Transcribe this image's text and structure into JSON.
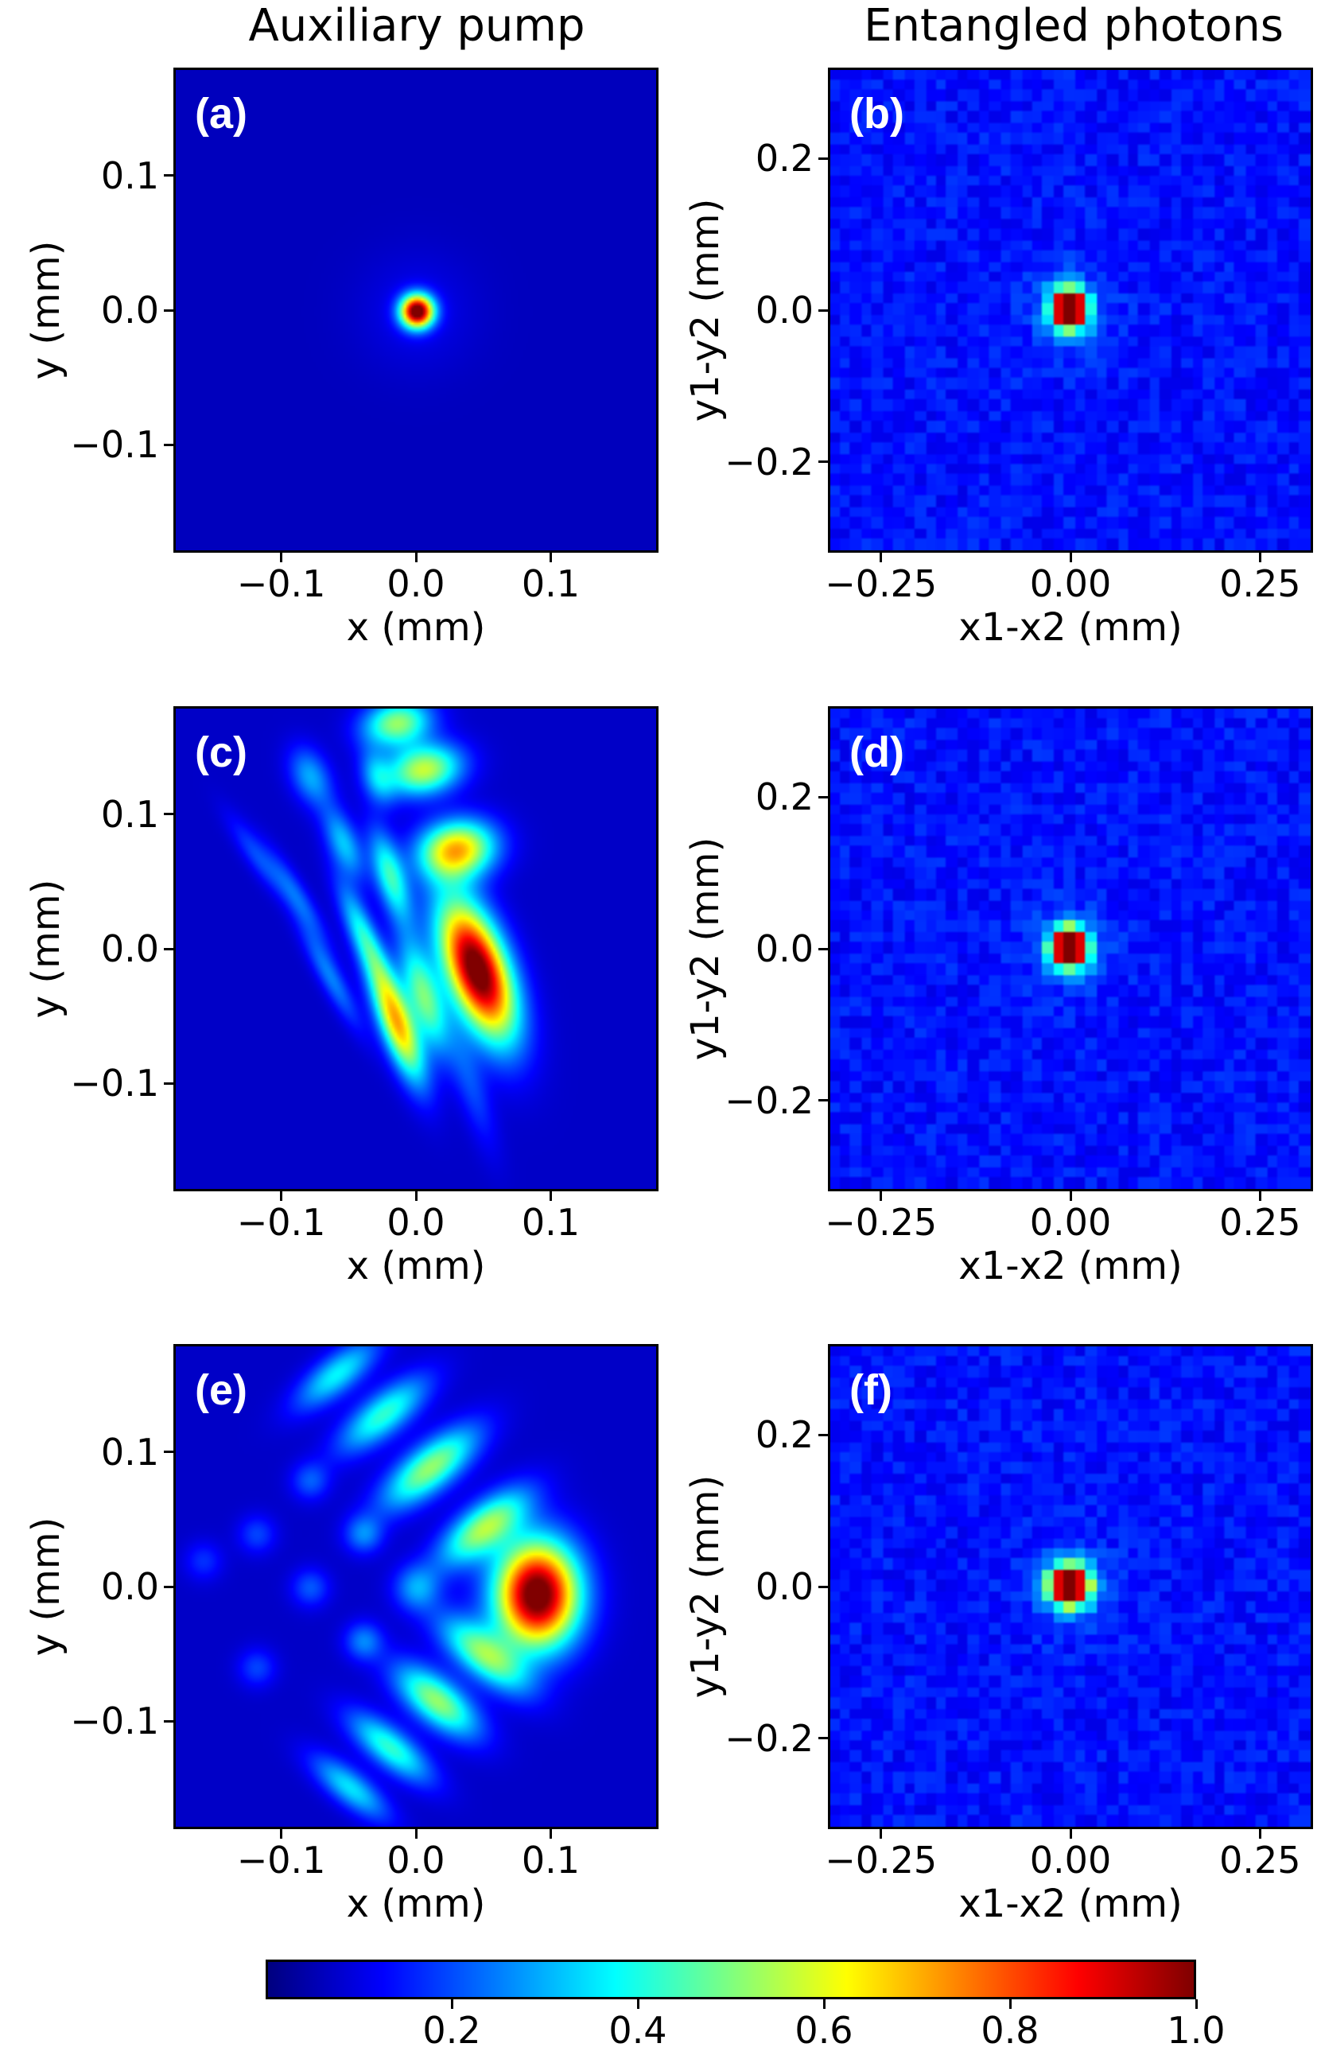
{
  "titles": {
    "left": "Auxiliary pump",
    "right": "Entangled photons"
  },
  "axis_labels": {
    "x_left": "x (mm)",
    "y_left": "y (mm)",
    "x_right": "x1-x2 (mm)",
    "y_right": "y1-y2 (mm)"
  },
  "colorbar": {
    "ticks": [
      "0.2",
      "0.4",
      "0.6",
      "0.8",
      "1.0"
    ],
    "colormap": "jet",
    "range": [
      0.0,
      1.0
    ]
  },
  "chart_data": [
    {
      "type": "heatmap",
      "panel": "(a)",
      "title": "Auxiliary pump",
      "xlabel": "x (mm)",
      "ylabel": "y (mm)",
      "xlim": [
        -0.18,
        0.18
      ],
      "ylim": [
        -0.18,
        0.18
      ],
      "xticks": [
        "−0.1",
        "0.0",
        "0.1"
      ],
      "yticks": [
        "0.1",
        "0.0",
        "−0.1"
      ],
      "xtick_values": [
        -0.1,
        0.0,
        0.1
      ],
      "ytick_values": [
        0.1,
        0.0,
        -0.1
      ],
      "description_values": {
        "peak_x_mm": 0.0,
        "peak_y_mm": 0.0,
        "peak_intensity": 1.0
      }
    },
    {
      "type": "heatmap",
      "panel": "(b)",
      "title": "Entangled photons",
      "xlabel": "x1-x2 (mm)",
      "ylabel": "y1-y2 (mm)",
      "xlim": [
        -0.32,
        0.32
      ],
      "ylim": [
        -0.32,
        0.32
      ],
      "xticks": [
        "−0.25",
        "0.00",
        "0.25"
      ],
      "yticks": [
        "0.2",
        "0.0",
        "−0.2"
      ],
      "xtick_values": [
        -0.25,
        0.0,
        0.25
      ],
      "ytick_values": [
        0.2,
        0.0,
        -0.2
      ],
      "description_values": {
        "peak_x_mm": 0.0,
        "peak_y_mm": 0.0,
        "peak_intensity": 1.0
      }
    },
    {
      "type": "heatmap",
      "panel": "(c)",
      "xlabel": "x (mm)",
      "ylabel": "y (mm)",
      "xlim": [
        -0.18,
        0.18
      ],
      "ylim": [
        -0.18,
        0.18
      ],
      "xticks": [
        "−0.1",
        "0.0",
        "0.1"
      ],
      "yticks": [
        "0.1",
        "0.0",
        "−0.1"
      ],
      "xtick_values": [
        -0.1,
        0.0,
        0.1
      ],
      "ytick_values": [
        0.1,
        0.0,
        -0.1
      ],
      "description_values": {
        "peak_x_mm": 0.045,
        "peak_y_mm": -0.015,
        "peak_intensity": 1.0
      }
    },
    {
      "type": "heatmap",
      "panel": "(d)",
      "xlabel": "x1-x2 (mm)",
      "ylabel": "y1-y2 (mm)",
      "xlim": [
        -0.32,
        0.32
      ],
      "ylim": [
        -0.32,
        0.32
      ],
      "xticks": [
        "−0.25",
        "0.00",
        "0.25"
      ],
      "yticks": [
        "0.2",
        "0.0",
        "−0.2"
      ],
      "xtick_values": [
        -0.25,
        0.0,
        0.25
      ],
      "ytick_values": [
        0.2,
        0.0,
        -0.2
      ],
      "description_values": {
        "peak_x_mm": 0.0,
        "peak_y_mm": 0.0,
        "peak_intensity": 1.0
      }
    },
    {
      "type": "heatmap",
      "panel": "(e)",
      "xlabel": "x (mm)",
      "ylabel": "y (mm)",
      "xlim": [
        -0.18,
        0.18
      ],
      "ylim": [
        -0.18,
        0.18
      ],
      "xticks": [
        "−0.1",
        "0.0",
        "0.1"
      ],
      "yticks": [
        "0.1",
        "0.0",
        "−0.1"
      ],
      "xtick_values": [
        -0.1,
        0.0,
        0.1
      ],
      "ytick_values": [
        0.1,
        0.0,
        -0.1
      ],
      "description_values": {
        "peak_x_mm": 0.09,
        "peak_y_mm": -0.005,
        "peak_intensity": 1.0
      }
    },
    {
      "type": "heatmap",
      "panel": "(f)",
      "xlabel": "x1-x2 (mm)",
      "ylabel": "y1-y2 (mm)",
      "xlim": [
        -0.32,
        0.32
      ],
      "ylim": [
        -0.32,
        0.32
      ],
      "xticks": [
        "−0.25",
        "0.00",
        "0.25"
      ],
      "yticks": [
        "0.2",
        "0.0",
        "−0.2"
      ],
      "xtick_values": [
        -0.25,
        0.0,
        0.25
      ],
      "ytick_values": [
        0.2,
        0.0,
        -0.2
      ],
      "description_values": {
        "peak_x_mm": 0.0,
        "peak_y_mm": 0.0,
        "peak_intensity": 1.0
      }
    }
  ]
}
